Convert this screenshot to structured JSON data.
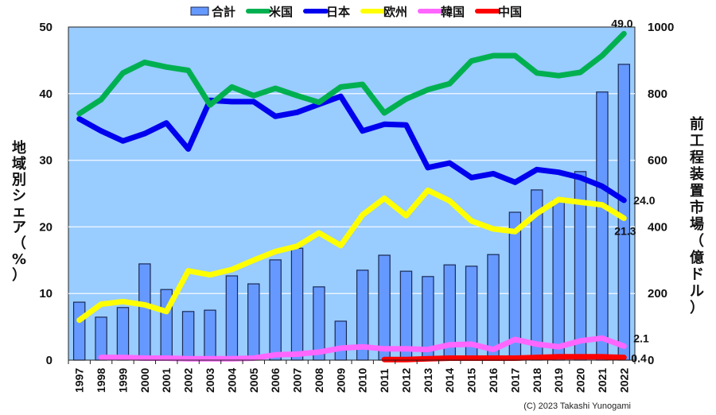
{
  "chart_data": {
    "type": "bar+line",
    "title": "",
    "categories": [
      "1997",
      "1998",
      "1999",
      "2000",
      "2001",
      "2002",
      "2003",
      "2004",
      "2005",
      "2006",
      "2007",
      "2008",
      "2009",
      "2010",
      "2011",
      "2012",
      "2013",
      "2014",
      "2015",
      "2016",
      "2017",
      "2018",
      "2019",
      "2020",
      "2021",
      "2022"
    ],
    "left_axis": {
      "label": "地域別シェア（%）",
      "ylim": [
        0,
        50
      ],
      "ticks": [
        "0",
        "10",
        "20",
        "30",
        "40",
        "50"
      ]
    },
    "right_axis": {
      "label": "前工程装置市場（億ドル）",
      "ylim": [
        0,
        1000
      ],
      "ticks": [
        "0",
        "200",
        "400",
        "600",
        "800",
        "1000"
      ]
    },
    "grid": true,
    "legend_position": "top",
    "series": [
      {
        "name": "合計",
        "kind": "bar",
        "axis": "right",
        "color": "#6699ff",
        "values": [
          174,
          129,
          158,
          289,
          212,
          146,
          150,
          253,
          229,
          301,
          336,
          220,
          117,
          270,
          315,
          267,
          251,
          286,
          282,
          317,
          444,
          511,
          480,
          566,
          805,
          888
        ]
      },
      {
        "name": "米国",
        "kind": "line",
        "axis": "left",
        "color": "#00b050",
        "values": [
          37.0,
          39.1,
          43.1,
          44.7,
          44.0,
          43.5,
          38.3,
          41.0,
          39.7,
          40.8,
          39.7,
          38.7,
          41.0,
          41.4,
          37.1,
          39.2,
          40.6,
          41.5,
          44.9,
          45.7,
          45.7,
          43.1,
          42.7,
          43.2,
          45.7,
          49.0
        ]
      },
      {
        "name": "日本",
        "kind": "line",
        "axis": "left",
        "color": "#0000ee",
        "values": [
          36.2,
          34.4,
          32.9,
          34.0,
          35.6,
          31.7,
          39.0,
          38.8,
          38.8,
          36.6,
          37.2,
          38.4,
          39.6,
          34.4,
          35.4,
          35.3,
          28.9,
          29.6,
          27.4,
          28.0,
          26.7,
          28.6,
          28.2,
          27.4,
          26.1,
          24.0
        ]
      },
      {
        "name": "欧州",
        "kind": "line",
        "axis": "left",
        "color": "#ffff00",
        "values": [
          6.0,
          8.4,
          8.8,
          8.3,
          7.3,
          13.4,
          12.8,
          13.6,
          15.0,
          16.3,
          17.1,
          19.1,
          17.2,
          21.8,
          24.3,
          21.7,
          25.5,
          23.9,
          20.9,
          19.7,
          19.3,
          22.0,
          24.1,
          23.7,
          23.3,
          21.3
        ]
      },
      {
        "name": "韓国",
        "kind": "line",
        "axis": "left",
        "color": "#ff66ff",
        "values": [
          null,
          0.4,
          0.4,
          0.3,
          0.3,
          0.2,
          0.2,
          0.2,
          0.3,
          0.8,
          0.9,
          1.2,
          1.8,
          2.0,
          1.7,
          1.7,
          1.6,
          2.3,
          2.4,
          1.6,
          3.1,
          2.4,
          2.0,
          2.9,
          3.3,
          2.1
        ]
      },
      {
        "name": "中国",
        "kind": "line",
        "axis": "left",
        "color": "#ff0000",
        "values": [
          null,
          null,
          null,
          null,
          null,
          null,
          null,
          null,
          null,
          null,
          null,
          null,
          null,
          null,
          0.1,
          0.1,
          0.2,
          0.3,
          0.3,
          0.3,
          0.3,
          0.4,
          0.5,
          0.5,
          0.5,
          0.4
        ]
      }
    ],
    "end_labels": [
      {
        "series": "米国",
        "text": "49.0"
      },
      {
        "series": "日本",
        "text": "24.0"
      },
      {
        "series": "欧州",
        "text": "21.3"
      },
      {
        "series": "韓国",
        "text": "2.1"
      },
      {
        "series": "中国",
        "text": "0.4"
      }
    ],
    "copyright": "(C) 2023 Takashi Yunogami"
  }
}
